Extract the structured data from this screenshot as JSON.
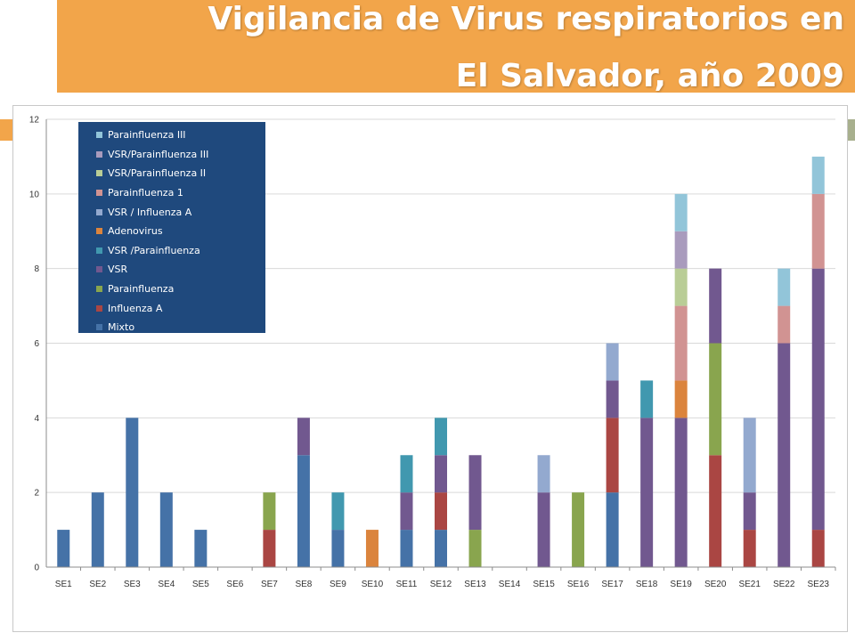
{
  "header": {
    "title_line1": "Vigilancia de Virus respiratorios en",
    "title_line2": "El Salvador, año 2009"
  },
  "colors": {
    "title_band": "#f2a54a",
    "legend_bg": "#1f497d"
  },
  "chart_data": {
    "type": "bar",
    "stacked": true,
    "title": "",
    "xlabel": "",
    "ylabel": "",
    "ylim": [
      0,
      12
    ],
    "yticks": [
      0,
      2,
      4,
      6,
      8,
      10,
      12
    ],
    "grid": true,
    "legend_position": "top-left",
    "categories": [
      "SE1",
      "SE2",
      "SE3",
      "SE4",
      "SE5",
      "SE6",
      "SE7",
      "SE8",
      "SE9",
      "SE10",
      "SE11",
      "SE12",
      "SE13",
      "SE14",
      "SE15",
      "SE16",
      "SE17",
      "SE18",
      "SE19",
      "SE20",
      "SE21",
      "SE22",
      "SE23"
    ],
    "series": [
      {
        "name": "Mixto",
        "color": "#4572a7",
        "values": [
          1,
          2,
          4,
          2,
          1,
          0,
          0,
          3,
          1,
          0,
          1,
          1,
          0,
          0,
          0,
          0,
          2,
          0,
          0,
          0,
          0,
          0,
          0
        ]
      },
      {
        "name": "Influenza A",
        "color": "#aa4643",
        "values": [
          0,
          0,
          0,
          0,
          0,
          0,
          1,
          0,
          0,
          0,
          0,
          1,
          0,
          0,
          0,
          0,
          2,
          0,
          0,
          3,
          1,
          0,
          1
        ]
      },
      {
        "name": "Parainfluenza",
        "color": "#89a54e",
        "values": [
          0,
          0,
          0,
          0,
          0,
          0,
          1,
          0,
          0,
          0,
          0,
          0,
          1,
          0,
          0,
          2,
          0,
          0,
          0,
          3,
          0,
          0,
          0
        ]
      },
      {
        "name": "VSR",
        "color": "#71588f",
        "values": [
          0,
          0,
          0,
          0,
          0,
          0,
          0,
          1,
          0,
          0,
          1,
          1,
          2,
          0,
          2,
          0,
          1,
          4,
          4,
          2,
          1,
          6,
          7
        ]
      },
      {
        "name": "VSR /Parainfluenza",
        "color": "#4198af",
        "values": [
          0,
          0,
          0,
          0,
          0,
          0,
          0,
          0,
          1,
          0,
          1,
          1,
          0,
          0,
          0,
          0,
          0,
          1,
          0,
          0,
          0,
          0,
          0
        ]
      },
      {
        "name": "Adenovirus",
        "color": "#db843d",
        "values": [
          0,
          0,
          0,
          0,
          0,
          0,
          0,
          0,
          0,
          1,
          0,
          0,
          0,
          0,
          0,
          0,
          0,
          0,
          1,
          0,
          0,
          0,
          0
        ]
      },
      {
        "name": "VSR / Influenza A",
        "color": "#93a9cf",
        "values": [
          0,
          0,
          0,
          0,
          0,
          0,
          0,
          0,
          0,
          0,
          0,
          0,
          0,
          0,
          1,
          0,
          1,
          0,
          0,
          0,
          2,
          0,
          0
        ]
      },
      {
        "name": "Parainfluenza 1",
        "color": "#d19392",
        "values": [
          0,
          0,
          0,
          0,
          0,
          0,
          0,
          0,
          0,
          0,
          0,
          0,
          0,
          0,
          0,
          0,
          0,
          0,
          2,
          0,
          0,
          1,
          2
        ]
      },
      {
        "name": "VSR/Parainfluenza II",
        "color": "#b9cd96",
        "values": [
          0,
          0,
          0,
          0,
          0,
          0,
          0,
          0,
          0,
          0,
          0,
          0,
          0,
          0,
          0,
          0,
          0,
          0,
          1,
          0,
          0,
          0,
          0
        ]
      },
      {
        "name": "VSR/Parainfluenza III",
        "color": "#a99bbd",
        "values": [
          0,
          0,
          0,
          0,
          0,
          0,
          0,
          0,
          0,
          0,
          0,
          0,
          0,
          0,
          0,
          0,
          0,
          0,
          1,
          0,
          0,
          0,
          0
        ]
      },
      {
        "name": "Parainfluenza III",
        "color": "#92c5d9",
        "values": [
          0,
          0,
          0,
          0,
          0,
          0,
          0,
          0,
          0,
          0,
          0,
          0,
          0,
          0,
          0,
          0,
          0,
          0,
          1,
          0,
          0,
          1,
          1
        ]
      }
    ]
  }
}
